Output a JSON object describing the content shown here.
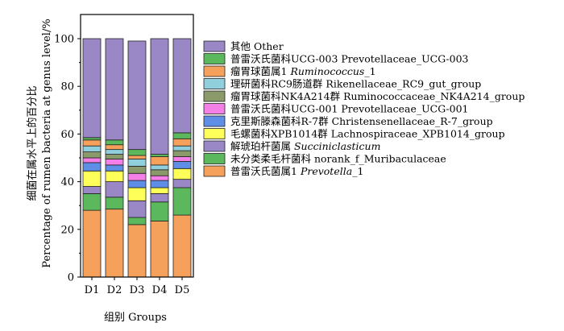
{
  "chart_data": {
    "type": "bar",
    "stacked": true,
    "categories": [
      "D1",
      "D2",
      "D3",
      "D4",
      "D5"
    ],
    "xlabel": "组别 Groups",
    "ylabel_cn": "细菌在属水平上的百分比",
    "ylabel_en": "Percentage of rumen bacteria at genus level/%",
    "ylim": [
      0,
      100
    ],
    "yticks": [
      "0",
      "20",
      "40",
      "60",
      "80",
      "100"
    ],
    "series": [
      {
        "name": "普雷沃氏菌属1 Prevotella_1",
        "color": "#f5a15c",
        "values": [
          28.0,
          28.5,
          22.0,
          23.5,
          26.0
        ]
      },
      {
        "name": "未分类柔毛杆菌科 norank_f_Muribaculaceae",
        "color": "#5cb85c",
        "values": [
          7.0,
          5.0,
          3.0,
          8.0,
          11.5
        ]
      },
      {
        "name": "解琥珀杆菌属 Succiniclasticum",
        "color": "#9a88c6",
        "values": [
          3.0,
          6.5,
          7.0,
          3.5,
          3.5
        ]
      },
      {
        "name": "毛螺菌科XPB1014群 Lachnospiraceae_XPB1014_group",
        "color": "#ffff5a",
        "values": [
          6.5,
          4.5,
          5.5,
          2.5,
          4.5
        ]
      },
      {
        "name": "克里斯滕森菌科R-7群 Christensenellaceae_R-7_group",
        "color": "#5e8ee6",
        "values": [
          3.5,
          2.5,
          3.0,
          3.0,
          3.0
        ]
      },
      {
        "name": "普雷沃氏菌科UCG-001 Prevotellaceae_UCG-001",
        "color": "#f47fe6",
        "values": [
          2.0,
          2.5,
          3.0,
          2.0,
          2.0
        ]
      },
      {
        "name": "瘤胃球菌科NK4A214群 Ruminococcaceae_NK4A214_group",
        "color": "#8a9a6a",
        "values": [
          2.5,
          2.0,
          3.0,
          2.5,
          2.5
        ]
      },
      {
        "name": "理研菌科RC9肠道群 Rikenellaceae_RC9_gut_group",
        "color": "#8fd0dc",
        "values": [
          2.5,
          2.0,
          3.0,
          2.0,
          2.0
        ]
      },
      {
        "name": "瘤胃球菌属1 Ruminococcus_1",
        "color": "#f5a15c",
        "values": [
          2.5,
          2.0,
          1.5,
          3.5,
          3.0
        ]
      },
      {
        "name": "普雷沃氏菌科UCG-003 Prevotellaceae_UCG-003",
        "color": "#5cb85c",
        "values": [
          1.0,
          2.0,
          2.5,
          1.0,
          2.5
        ]
      },
      {
        "name": "其他 Other",
        "color": "#9a88c6",
        "values": [
          41.5,
          42.5,
          45.5,
          48.5,
          39.5
        ]
      }
    ],
    "legend": [
      {
        "cn": "其他",
        "en": "Other",
        "italic": false
      },
      {
        "cn": "普雷沃氏菌科UCG-003",
        "en": "Prevotellaceae_UCG-003",
        "italic": false
      },
      {
        "cn": "瘤胃球菌属1",
        "en": "Ruminococcus",
        "suffix": "_1",
        "italic": true
      },
      {
        "cn": "理研菌科RC9肠道群",
        "en": "Rikenellaceae_RC9_gut_group",
        "italic": false
      },
      {
        "cn": "瘤胃球菌科NK4A214群",
        "en": " Ruminococcaceae_NK4A214_group",
        "italic": false
      },
      {
        "cn": "普雷沃氏菌科UCG-001",
        "en": "Prevotellaceae_UCG-001",
        "italic": false
      },
      {
        "cn": "克里斯滕森菌科R-7群",
        "en": "Christensenellaceae_R-7_group",
        "italic": false
      },
      {
        "cn": "毛螺菌科XPB1014群",
        "en": "Lachnospiraceae_XPB1014_group",
        "italic": false
      },
      {
        "cn": "解琥珀杆菌属",
        "en": "Succiniclasticum",
        "italic": true
      },
      {
        "cn": "未分类柔毛杆菌科",
        "en": "norank_f_Muribaculaceae",
        "italic": false
      },
      {
        "cn": "普雷沃氏菌属1",
        "en": "Prevotella",
        "suffix": "_1",
        "italic": true
      }
    ],
    "legend_placement": "right",
    "grid": false
  }
}
